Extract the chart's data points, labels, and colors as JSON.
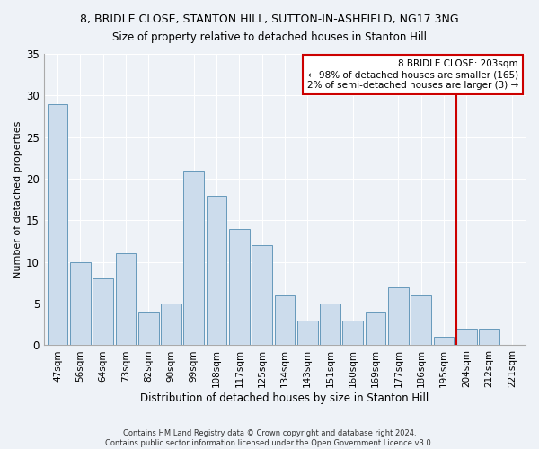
{
  "title": "8, BRIDLE CLOSE, STANTON HILL, SUTTON-IN-ASHFIELD, NG17 3NG",
  "subtitle": "Size of property relative to detached houses in Stanton Hill",
  "xlabel": "Distribution of detached houses by size in Stanton Hill",
  "ylabel": "Number of detached properties",
  "categories": [
    "47sqm",
    "56sqm",
    "64sqm",
    "73sqm",
    "82sqm",
    "90sqm",
    "99sqm",
    "108sqm",
    "117sqm",
    "125sqm",
    "134sqm",
    "143sqm",
    "151sqm",
    "160sqm",
    "169sqm",
    "177sqm",
    "186sqm",
    "195sqm",
    "204sqm",
    "212sqm",
    "221sqm"
  ],
  "values": [
    29,
    10,
    8,
    11,
    4,
    5,
    21,
    18,
    14,
    12,
    6,
    3,
    5,
    3,
    4,
    7,
    6,
    1,
    2,
    2,
    0
  ],
  "bar_color": "#ccdcec",
  "bar_edge_color": "#6699bb",
  "ylim": [
    0,
    35
  ],
  "yticks": [
    0,
    5,
    10,
    15,
    20,
    25,
    30,
    35
  ],
  "vline_x_index": 17.55,
  "vline_color": "#cc0000",
  "annotation_line1": "8 BRIDLE CLOSE: 203sqm",
  "annotation_line2": "← 98% of detached houses are smaller (165)",
  "annotation_line3": "2% of semi-detached houses are larger (3) →",
  "annotation_box_color": "#cc0000",
  "footer_line1": "Contains HM Land Registry data © Crown copyright and database right 2024.",
  "footer_line2": "Contains public sector information licensed under the Open Government Licence v3.0.",
  "background_color": "#eef2f7",
  "grid_color": "#ffffff",
  "title_fontsize": 9,
  "subtitle_fontsize": 8.5,
  "tick_fontsize": 7.5,
  "ylabel_fontsize": 8,
  "xlabel_fontsize": 8.5,
  "annotation_fontsize": 7.5,
  "footer_fontsize": 6.0
}
